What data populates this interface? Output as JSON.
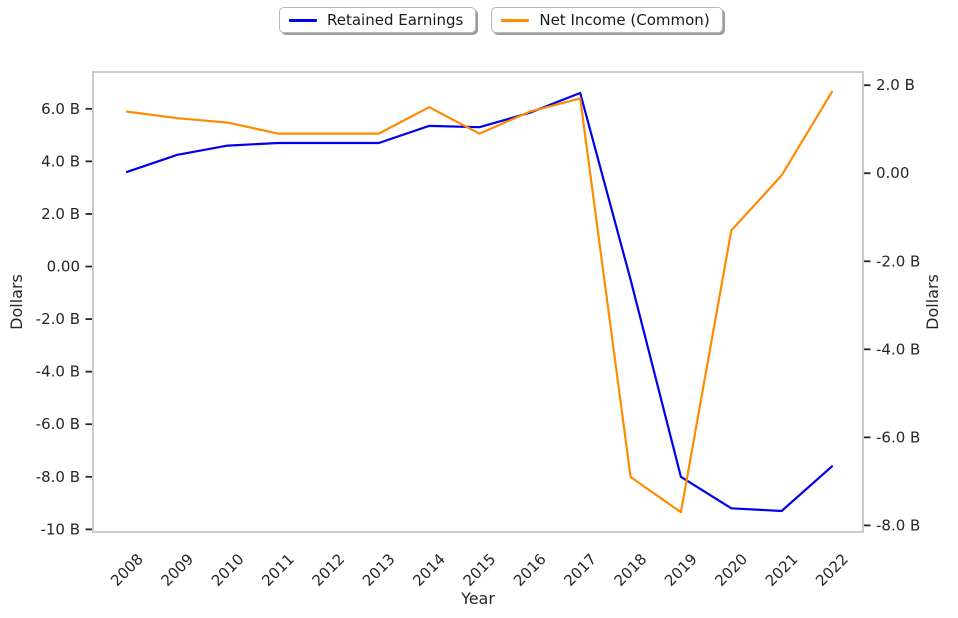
{
  "figure": {
    "background": "#ffffff"
  },
  "legend": {
    "position": "top-center",
    "entries": [
      {
        "label": "Retained Earnings",
        "color": "#0000ee"
      },
      {
        "label": "Net Income (Common)",
        "color": "#ff8c00"
      }
    ]
  },
  "chart_data": {
    "type": "line",
    "title": "",
    "xlabel": "Year",
    "ylabel_left": "Dollars",
    "ylabel_right": "Dollars",
    "units": "billions of dollars",
    "x": [
      "2008",
      "2009",
      "2010",
      "2011",
      "2012",
      "2013",
      "2014",
      "2015",
      "2016",
      "2017",
      "2018",
      "2019",
      "2020",
      "2021",
      "2022"
    ],
    "series": [
      {
        "name": "Retained Earnings",
        "axis": "left",
        "color": "#0000ee",
        "values": [
          3.6,
          4.25,
          4.6,
          4.7,
          4.7,
          4.7,
          5.35,
          5.3,
          5.85,
          6.6,
          -0.5,
          -8.0,
          -9.2,
          -9.3,
          -7.6
        ]
      },
      {
        "name": "Net Income (Common)",
        "axis": "right",
        "color": "#ff8c00",
        "values": [
          1.4,
          1.25,
          1.15,
          0.9,
          0.9,
          0.9,
          1.5,
          0.9,
          1.4,
          1.7,
          -6.9,
          -7.7,
          -1.3,
          -0.05,
          1.85
        ]
      }
    ],
    "ylim_left": [
      -10.1,
      7.4
    ],
    "ylim_right": [
      -8.15,
      2.3
    ],
    "yticks_left": {
      "values": [
        6,
        4,
        2,
        0,
        -2,
        -4,
        -6,
        -8,
        -10
      ],
      "labels": [
        "6.0 B",
        "4.0 B",
        "2.0 B",
        "0.00",
        "-2.0 B",
        "-4.0 B",
        "-6.0 B",
        "-8.0 B",
        "-10 B"
      ]
    },
    "yticks_right": {
      "values": [
        2,
        0,
        -2,
        -4,
        -6,
        -8
      ],
      "labels": [
        "2.0 B",
        "0.00",
        "-2.0 B",
        "-4.0 B",
        "-6.0 B",
        "-8.0 B"
      ]
    },
    "grid": false,
    "legend_position": "top-center",
    "colors": {
      "spine": "#cccccc",
      "tick_text": "#262626"
    }
  }
}
